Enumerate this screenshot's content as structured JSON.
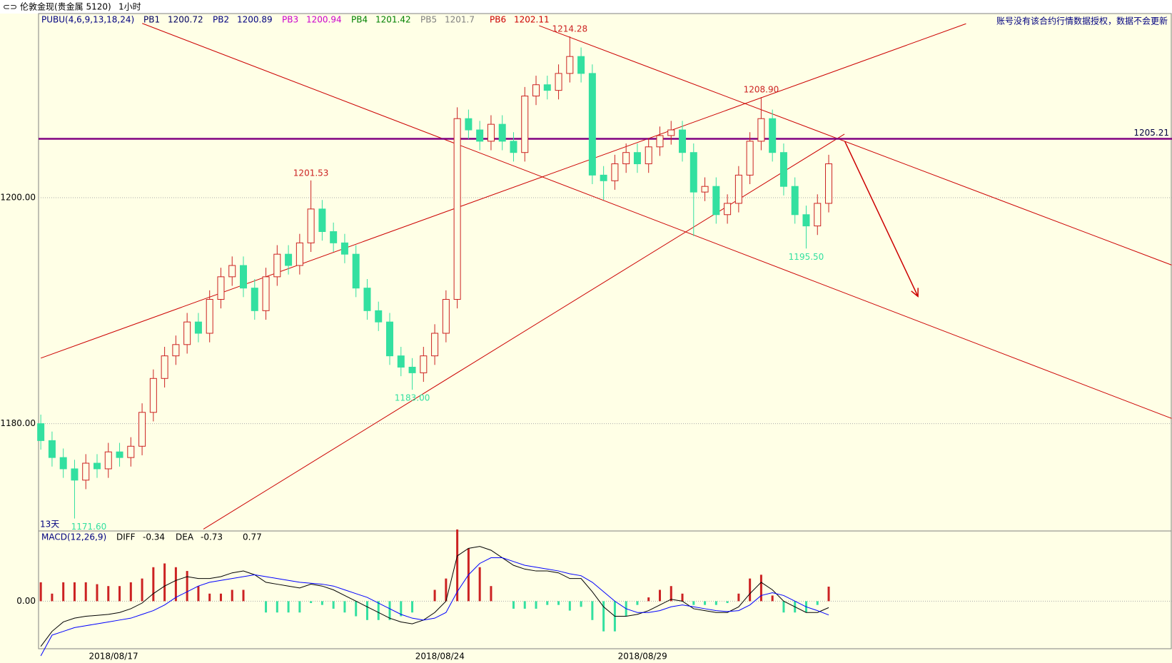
{
  "chart_data": {
    "type": "candlestick",
    "title": "伦敦金现(贵金属 5120)",
    "period": "1小时",
    "notice": "账号没有该合约行情数据授权，数据不会更新",
    "range_label": "13天",
    "indicator": {
      "name": "PUBU(4,6,9,13,18,24)",
      "lines": [
        {
          "name": "PB1",
          "value": 1200.72,
          "color": "#000060"
        },
        {
          "name": "PB2",
          "value": 1200.89,
          "color": "#000080"
        },
        {
          "name": "PB3",
          "value": 1200.94,
          "color": "#cc00cc"
        },
        {
          "name": "PB4",
          "value": 1201.42,
          "color": "#008000"
        },
        {
          "name": "PB5",
          "value": 1201.7,
          "color": "#808080"
        },
        {
          "name": "PB6",
          "value": 1202.11,
          "color": "#cc0000"
        }
      ]
    },
    "categories": [
      null,
      null,
      null,
      "2018/08/17",
      null,
      null,
      null,
      null,
      null,
      null,
      null,
      null,
      null,
      null,
      null,
      null,
      null,
      null,
      null,
      null,
      null,
      null,
      null,
      null,
      null,
      null,
      null,
      null,
      null,
      null,
      null,
      null,
      "2018/08/24",
      null,
      null,
      null,
      null,
      null,
      null,
      null,
      null,
      null,
      null,
      null,
      null,
      null,
      null,
      null,
      null,
      null,
      "2018/08/29",
      null,
      null,
      null,
      null,
      null,
      null,
      null,
      null,
      null,
      null,
      null,
      null,
      null,
      null,
      null,
      null,
      null,
      null,
      null,
      null
    ],
    "open": [
      1180,
      1178.5,
      1177,
      1176,
      1175,
      1176.5,
      1176,
      1177.5,
      1177,
      1178,
      1181,
      1184,
      1186,
      1187,
      1189,
      1188,
      1191,
      1193,
      1194,
      1192,
      1190,
      1193,
      1195,
      1194,
      1196,
      1199,
      1197,
      1196,
      1195,
      1192,
      1190,
      1189,
      1186,
      1185,
      1184.5,
      1186,
      1188,
      1191,
      1207,
      1206,
      1205,
      1206.5,
      1205,
      1204,
      1209,
      1210,
      1209.5,
      1211,
      1212.5,
      1211,
      1202,
      1201.5,
      1203,
      1204,
      1203,
      1204.5,
      1205.5,
      1206,
      1204,
      1200.5,
      1201,
      1198.5,
      1199.5,
      1202,
      1205,
      1207,
      1204,
      1201,
      1198.5,
      1197.5,
      1199.5
    ],
    "high": [
      1180.8,
      1179.3,
      1177.8,
      1176.8,
      1177.3,
      1177.3,
      1178.3,
      1178.3,
      1178.8,
      1181.8,
      1184.8,
      1186.8,
      1187.8,
      1189.8,
      1189.8,
      1191.8,
      1193.8,
      1194.8,
      1194.8,
      1192.8,
      1193.8,
      1195.8,
      1195.8,
      1196.8,
      1201.53,
      1199.8,
      1197.8,
      1196.8,
      1195.8,
      1192.8,
      1190.8,
      1189.8,
      1186.8,
      1185.8,
      1186.8,
      1188.8,
      1191.8,
      1208,
      1207.8,
      1206.8,
      1207.3,
      1207.3,
      1205.8,
      1209.8,
      1210.8,
      1210.8,
      1211.8,
      1214.28,
      1213.3,
      1211.8,
      1202.8,
      1203.8,
      1204.8,
      1204.8,
      1205.3,
      1206.3,
      1206.8,
      1206.8,
      1204.8,
      1201.8,
      1201.8,
      1200.3,
      1202.8,
      1205.8,
      1208.9,
      1207.8,
      1204.8,
      1201.8,
      1199.3,
      1200.3,
      1203.8
    ],
    "low": [
      1177.7,
      1176.2,
      1175.2,
      1171.6,
      1174.2,
      1175.2,
      1175.2,
      1176.2,
      1176.2,
      1177.2,
      1180.2,
      1183.2,
      1185.2,
      1186.2,
      1187.2,
      1187.2,
      1190.2,
      1192.2,
      1191.2,
      1189.2,
      1189.2,
      1192.2,
      1193.2,
      1193.2,
      1195.2,
      1196.2,
      1195.2,
      1194.2,
      1191.2,
      1189.2,
      1188.2,
      1185.2,
      1184.2,
      1183,
      1183.7,
      1185.2,
      1187.2,
      1190.2,
      1205.2,
      1204.2,
      1204.2,
      1204.2,
      1203.2,
      1203.2,
      1208.2,
      1208.7,
      1208.7,
      1210.2,
      1210.2,
      1201.2,
      1199.8,
      1200.7,
      1202.2,
      1202.2,
      1202.2,
      1203.7,
      1204.7,
      1203.2,
      1196.6,
      1199.7,
      1197.7,
      1197.7,
      1198.7,
      1201.2,
      1204.2,
      1203.2,
      1200.2,
      1197.7,
      1195.5,
      1196.7,
      1198.7
    ],
    "close": [
      1178.5,
      1177,
      1176,
      1175,
      1176.5,
      1176,
      1177.5,
      1177,
      1178,
      1181,
      1184,
      1186,
      1187,
      1189,
      1188,
      1191,
      1193,
      1194,
      1192,
      1190,
      1193,
      1195,
      1194,
      1196,
      1199,
      1197,
      1196,
      1195,
      1192,
      1190,
      1189,
      1186,
      1185,
      1184.5,
      1186,
      1188,
      1191,
      1207,
      1206,
      1205,
      1206.5,
      1205,
      1204,
      1209,
      1210,
      1209.5,
      1211,
      1212.5,
      1211,
      1202,
      1201.5,
      1203,
      1204,
      1203,
      1204.5,
      1205.5,
      1206,
      1204,
      1200.5,
      1201,
      1198.5,
      1199.5,
      1202,
      1205,
      1207,
      1204,
      1201,
      1198.5,
      1197.5,
      1199.5,
      1203
    ],
    "up_color": "#cc2222",
    "down_color": "#33e0a0",
    "xlim": [
      -0.2,
      100.5
    ],
    "ylim": [
      1170.5,
      1216.3
    ],
    "yticks": [
      {
        "value": 1180,
        "label": "1180.00"
      },
      {
        "value": 1200,
        "label": "1200.00"
      }
    ],
    "grid": true,
    "annotations": [
      {
        "value": 1201.53,
        "label": "1201.53"
      },
      {
        "value": 1214.28,
        "label": "1214.28"
      },
      {
        "value": 1208.9,
        "label": "1208.90"
      },
      {
        "value": 1171.6,
        "label": "1171.60"
      },
      {
        "value": 1183,
        "label": "1183.00"
      },
      {
        "value": 1195.5,
        "label": "1195.50"
      }
    ],
    "hline": {
      "value": 1205.21,
      "color": "#800080"
    },
    "trendline_color": "#cc0000",
    "trendlines": [
      {
        "x": [
          0,
          82.2
        ],
        "y": [
          1185.8,
          1215.4
        ]
      },
      {
        "x": [
          14.45,
          71.4
        ],
        "y": [
          1170.66,
          1205.63
        ]
      },
      {
        "x": [
          9.01,
          100.47
        ],
        "y": [
          1215.43,
          1180.46
        ]
      },
      {
        "x": [
          44.27,
          100.47
        ],
        "y": [
          1215.23,
          1194.04
        ]
      }
    ],
    "arrow": {
      "x": [
        71.44,
        77.93
      ],
      "y": [
        1204.97,
        1191.26
      ]
    },
    "macd": {
      "name": "MACD(12,26,9)",
      "diff_name": "DIFF",
      "dea_name": "DEA",
      "diff_color": "#000000",
      "dea_color": "#0000ff",
      "ylim": [
        -2.52,
        3.72
      ],
      "yticks": [
        {
          "value": 0,
          "label": "0.00"
        }
      ],
      "diff": [
        -2.4,
        -1.6,
        -1.1,
        -0.9,
        -0.8,
        -0.75,
        -0.7,
        -0.6,
        -0.4,
        -0.1,
        0.4,
        0.8,
        1.1,
        1.3,
        1.2,
        1.2,
        1.3,
        1.5,
        1.6,
        1.4,
        1.0,
        0.9,
        0.8,
        0.7,
        0.9,
        0.8,
        0.6,
        0.3,
        0.0,
        -0.3,
        -0.6,
        -0.9,
        -1.1,
        -1.2,
        -1.0,
        -0.6,
        0.0,
        2.4,
        2.8,
        2.9,
        2.7,
        2.3,
        1.9,
        1.7,
        1.6,
        1.6,
        1.5,
        1.2,
        1.2,
        0.5,
        -0.3,
        -0.8,
        -0.8,
        -0.7,
        -0.5,
        -0.2,
        0.1,
        0.0,
        -0.4,
        -0.5,
        -0.6,
        -0.6,
        -0.3,
        0.4,
        1.0,
        0.6,
        0.0,
        -0.3,
        -0.6,
        -0.6,
        -0.34
      ],
      "dea": [
        -2.9,
        -1.8,
        -1.6,
        -1.4,
        -1.3,
        -1.2,
        -1.1,
        -1.0,
        -0.9,
        -0.7,
        -0.5,
        -0.2,
        0.2,
        0.5,
        0.8,
        1.0,
        1.1,
        1.2,
        1.3,
        1.4,
        1.3,
        1.2,
        1.1,
        1.0,
        0.95,
        0.9,
        0.8,
        0.6,
        0.4,
        0.2,
        -0.1,
        -0.4,
        -0.7,
        -0.9,
        -1.0,
        -0.9,
        -0.6,
        0.5,
        1.4,
        2.0,
        2.3,
        2.3,
        2.1,
        1.9,
        1.8,
        1.7,
        1.6,
        1.45,
        1.35,
        1.0,
        0.5,
        0.0,
        -0.4,
        -0.6,
        -0.6,
        -0.5,
        -0.3,
        -0.2,
        -0.3,
        -0.4,
        -0.5,
        -0.55,
        -0.5,
        -0.2,
        0.3,
        0.45,
        0.3,
        0.0,
        -0.3,
        -0.5,
        -0.73
      ],
      "hist": [
        1.0,
        0.4,
        1.0,
        1.0,
        1.0,
        0.9,
        0.8,
        0.8,
        1.0,
        1.2,
        1.8,
        2.0,
        1.8,
        1.6,
        0.8,
        0.4,
        0.4,
        0.6,
        0.6,
        0.0,
        -0.6,
        -0.6,
        -0.6,
        -0.6,
        -0.1,
        -0.2,
        -0.4,
        -0.6,
        -0.8,
        -1.0,
        -1.0,
        -1.0,
        -0.8,
        -0.6,
        0.0,
        0.6,
        1.2,
        3.8,
        2.8,
        1.8,
        0.8,
        0.0,
        -0.4,
        -0.4,
        -0.4,
        -0.2,
        -0.2,
        -0.5,
        -0.3,
        -1.0,
        -1.6,
        -1.6,
        -0.8,
        -0.2,
        0.2,
        0.6,
        0.8,
        0.4,
        -0.2,
        -0.2,
        -0.2,
        -0.1,
        0.4,
        1.2,
        1.4,
        0.3,
        -0.6,
        -0.6,
        -0.6,
        -0.2,
        0.77
      ]
    }
  }
}
